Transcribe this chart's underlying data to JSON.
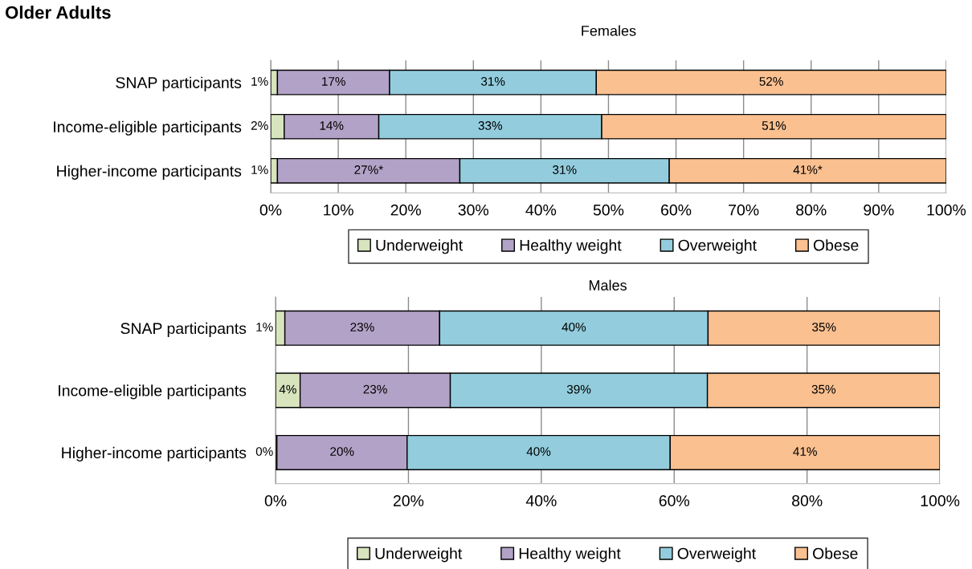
{
  "chart_data": [
    {
      "type": "bar",
      "title": "Females",
      "annotations": [
        "Older Adults"
      ],
      "orientation": "horizontal",
      "stacked": true,
      "grid": "x",
      "legend": "bottom",
      "categories": [
        "SNAP participants",
        "Income-eligible participants",
        "Higher-income participants"
      ],
      "xlim": [
        0,
        100
      ],
      "xticks": [
        {
          "value": 0,
          "label": "0%"
        },
        {
          "value": 10,
          "label": "10%"
        },
        {
          "value": 20,
          "label": "20%"
        },
        {
          "value": 30,
          "label": "30%"
        },
        {
          "value": 40,
          "label": "40%"
        },
        {
          "value": 50,
          "label": "50%"
        },
        {
          "value": 60,
          "label": "60%"
        },
        {
          "value": 70,
          "label": "70%"
        },
        {
          "value": 80,
          "label": "80%"
        },
        {
          "value": 90,
          "label": "90%"
        },
        {
          "value": 100,
          "label": "100%"
        }
      ],
      "series": [
        {
          "name": "Underweight",
          "color": "#d7e4bd",
          "values": [
            1,
            2,
            1
          ],
          "value_labels": [
            "1%",
            "2%",
            "1%"
          ]
        },
        {
          "name": "Healthy weight",
          "color": "#b3a2c7",
          "values": [
            16.6,
            14,
            27
          ],
          "value_labels": [
            "17%",
            "14%",
            "27%*"
          ]
        },
        {
          "name": "Overweight",
          "color": "#93cddd",
          "values": [
            30.6,
            33,
            31
          ],
          "value_labels": [
            "31%",
            "33%",
            "31%"
          ]
        },
        {
          "name": "Obese",
          "color": "#fac090",
          "values": [
            51.8,
            51,
            41
          ],
          "value_labels": [
            "52%",
            "51%",
            "41%*"
          ]
        }
      ]
    },
    {
      "type": "bar",
      "title": "Males",
      "orientation": "horizontal",
      "stacked": true,
      "grid": "x",
      "legend": "bottom",
      "categories": [
        "SNAP participants",
        "Income-eligible participants",
        "Higher-income participants"
      ],
      "xlim": [
        0,
        100
      ],
      "xticks": [
        {
          "value": 0,
          "label": "0%"
        },
        {
          "value": 20,
          "label": "20%"
        },
        {
          "value": 40,
          "label": "40%"
        },
        {
          "value": 60,
          "label": "60%"
        },
        {
          "value": 80,
          "label": "80%"
        },
        {
          "value": 100,
          "label": "100%"
        }
      ],
      "series": [
        {
          "name": "Underweight",
          "color": "#d7e4bd",
          "values": [
            1.4,
            3.7,
            0.2
          ],
          "value_labels": [
            "1%",
            "4%",
            "0%"
          ]
        },
        {
          "name": "Healthy weight",
          "color": "#b3a2c7",
          "values": [
            23.3,
            22.6,
            19.6
          ],
          "value_labels": [
            "23%",
            "23%",
            "20%"
          ]
        },
        {
          "name": "Overweight",
          "color": "#93cddd",
          "values": [
            40.4,
            38.7,
            39.6
          ],
          "value_labels": [
            "40%",
            "39%",
            "40%"
          ]
        },
        {
          "name": "Obese",
          "color": "#fac090",
          "values": [
            34.9,
            35,
            40.6
          ],
          "value_labels": [
            "35%",
            "35%",
            "41%"
          ]
        }
      ]
    }
  ]
}
